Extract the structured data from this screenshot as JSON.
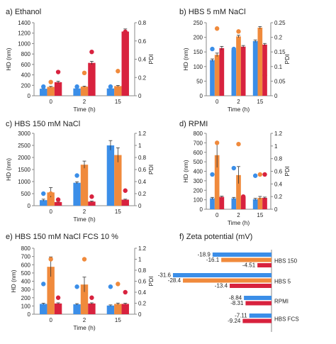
{
  "colors": {
    "blue": "#3b8ee8",
    "orange": "#f08a3c",
    "red": "#d8223e",
    "axis": "#888888"
  },
  "chart_data": [
    {
      "type": "bar",
      "title": "a) Ethanol",
      "xlabel": "Time (h)",
      "ylabel": "HD (nm)",
      "y2label": "PDI",
      "categories": [
        "0",
        "2",
        "15"
      ],
      "ylim": [
        0,
        1400
      ],
      "yticks": [
        0,
        200,
        400,
        600,
        800,
        1000,
        1200,
        1400
      ],
      "y2lim": [
        0,
        0.8
      ],
      "y2ticks": [
        "0",
        "0.2",
        "0.4",
        "0.6",
        "0.8"
      ],
      "series": [
        {
          "values": [
            135,
            140,
            140
          ],
          "errors": [
            8,
            10,
            8
          ],
          "pdi": [
            0.1,
            0.1,
            0.1
          ]
        },
        {
          "values": [
            170,
            175,
            185
          ],
          "errors": [
            10,
            10,
            12
          ],
          "pdi": [
            0.15,
            0.25,
            0.27
          ]
        },
        {
          "values": [
            260,
            630,
            1230
          ],
          "errors": [
            20,
            30,
            50
          ],
          "pdi": [
            0.26,
            0.48,
            0.7
          ]
        }
      ]
    },
    {
      "type": "bar",
      "title": "b) HBS 5 mM NaCl",
      "xlabel": "Time (h)",
      "ylabel": "HD (nm)",
      "y2label": "PDI",
      "categories": [
        "0",
        "2",
        "15"
      ],
      "ylim": [
        0,
        250
      ],
      "yticks": [
        0,
        50,
        100,
        150,
        200,
        250
      ],
      "y2lim": [
        0,
        0.25
      ],
      "y2ticks": [
        "0",
        "0.05",
        "0.1",
        "0.15",
        "0.2",
        "0.25"
      ],
      "series": [
        {
          "values": [
            122,
            157,
            187
          ],
          "errors": [
            4,
            4,
            4
          ],
          "pdi": [
            0.16,
            0.16,
            0.17
          ]
        },
        {
          "values": [
            140,
            203,
            233
          ],
          "errors": [
            6,
            4,
            4
          ],
          "pdi": [
            0.23,
            0.22,
            0.22
          ]
        },
        {
          "values": [
            163,
            168,
            175
          ],
          "errors": [
            6,
            4,
            4
          ],
          "pdi": [
            0.06,
            0.06,
            0.07
          ]
        }
      ]
    },
    {
      "type": "bar",
      "title": "c) HBS 150 mM NaCl",
      "xlabel": "Time (h)",
      "ylabel": "HD (nm)",
      "y2label": "PDI",
      "categories": [
        "0",
        "2",
        "15"
      ],
      "ylim": [
        0,
        3000
      ],
      "yticks": [
        0,
        500,
        1000,
        1500,
        2000,
        2500,
        3000
      ],
      "y2lim": [
        0,
        1.2
      ],
      "y2ticks": [
        "0",
        "0.2",
        "0.4",
        "0.6",
        "0.8",
        "1",
        "1.2"
      ],
      "series": [
        {
          "values": [
            230,
            950,
            2500
          ],
          "errors": [
            40,
            40,
            200
          ],
          "pdi": [
            0.2,
            0.5,
            0.8
          ]
        },
        {
          "values": [
            550,
            1700,
            2100
          ],
          "errors": [
            200,
            150,
            300
          ],
          "pdi": [
            0.2,
            0.35,
            0.65
          ]
        },
        {
          "values": [
            150,
            170,
            250
          ],
          "errors": [
            20,
            20,
            20
          ],
          "pdi": [
            0.1,
            0.15,
            0.25
          ]
        }
      ]
    },
    {
      "type": "bar",
      "title": "d) RPMI",
      "xlabel": "Time (h)",
      "ylabel": "HD (nm)",
      "y2label": "PDI",
      "categories": [
        "0",
        "2",
        "15"
      ],
      "ylim": [
        0,
        800
      ],
      "yticks": [
        0,
        100,
        200,
        300,
        400,
        500,
        600,
        700,
        800
      ],
      "y2lim": [
        0,
        1.2
      ],
      "y2ticks": [
        "0",
        "0.2",
        "0.4",
        "0.6",
        "0.8",
        "1",
        "1.2"
      ],
      "series": [
        {
          "values": [
            115,
            115,
            105
          ],
          "errors": [
            10,
            10,
            10
          ],
          "pdi": [
            0.55,
            0.65,
            0.53
          ]
        },
        {
          "values": [
            570,
            360,
            120
          ],
          "errors": [
            130,
            90,
            15
          ],
          "pdi": [
            1.05,
            1.03,
            0.55
          ]
        },
        {
          "values": [
            130,
            130,
            120
          ],
          "errors": [
            8,
            8,
            8
          ],
          "pdi": [
            0.15,
            0.2,
            0.55
          ]
        }
      ]
    },
    {
      "type": "bar",
      "title": "e) HBS 150 mM NaCl FCS 10 %",
      "xlabel": "Time (h)",
      "ylabel": "HD (nm)",
      "y2label": "PDI",
      "categories": [
        "0",
        "2",
        "15"
      ],
      "ylim": [
        0,
        800
      ],
      "yticks": [
        0,
        100,
        200,
        300,
        400,
        500,
        600,
        700,
        800
      ],
      "y2lim": [
        0,
        1.2
      ],
      "y2ticks": [
        "0",
        "0.2",
        "0.4",
        "0.6",
        "0.8",
        "1",
        "1.2"
      ],
      "series": [
        {
          "values": [
            125,
            120,
            105
          ],
          "errors": [
            8,
            8,
            8
          ],
          "pdi": [
            0.55,
            0.5,
            0.5
          ]
        },
        {
          "values": [
            575,
            360,
            125
          ],
          "errors": [
            120,
            90,
            10
          ],
          "pdi": [
            1.0,
            1.0,
            0.55
          ]
        },
        {
          "values": [
            130,
            130,
            125
          ],
          "errors": [
            8,
            8,
            8
          ],
          "pdi": [
            0.3,
            0.3,
            0.4
          ]
        }
      ]
    },
    {
      "type": "bar",
      "orientation": "horizontal",
      "title": "f) Zeta potential (mV)",
      "categories": [
        "HBS 150",
        "HBS 5",
        "RPMI",
        "HBS FCS"
      ],
      "series": [
        {
          "values": [
            -18.9,
            -31.6,
            -8.84,
            -7.11
          ],
          "labels": [
            "-18.9",
            "-31.6",
            "-8.84",
            "-7.11"
          ]
        },
        {
          "values": [
            -16.1,
            -28.4,
            0,
            0
          ],
          "labels": [
            "-16.1",
            "-28.4",
            "",
            ""
          ]
        },
        {
          "values": [
            -4.51,
            -13.4,
            -8.31,
            -9.24
          ],
          "labels": [
            "-4.51",
            "-13.4",
            "-8.31",
            "-9.24"
          ]
        }
      ]
    }
  ]
}
